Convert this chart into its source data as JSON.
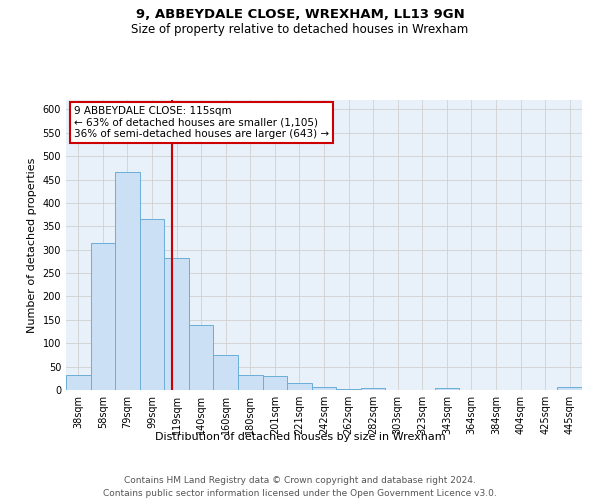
{
  "title": "9, ABBEYDALE CLOSE, WREXHAM, LL13 9GN",
  "subtitle": "Size of property relative to detached houses in Wrexham",
  "xlabel": "Distribution of detached houses by size in Wrexham",
  "ylabel": "Number of detached properties",
  "categories": [
    "38sqm",
    "58sqm",
    "79sqm",
    "99sqm",
    "119sqm",
    "140sqm",
    "160sqm",
    "180sqm",
    "201sqm",
    "221sqm",
    "242sqm",
    "262sqm",
    "282sqm",
    "303sqm",
    "323sqm",
    "343sqm",
    "364sqm",
    "384sqm",
    "404sqm",
    "425sqm",
    "445sqm"
  ],
  "values": [
    33,
    315,
    467,
    365,
    283,
    140,
    75,
    33,
    30,
    16,
    7,
    3,
    5,
    1,
    1,
    4,
    1,
    0,
    0,
    0,
    6
  ],
  "bar_color": "#cce0f5",
  "bar_edge_color": "#6baed6",
  "vline_x": 3.82,
  "vline_color": "#cc0000",
  "annotation_title": "9 ABBEYDALE CLOSE: 115sqm",
  "annotation_line1": "← 63% of detached houses are smaller (1,105)",
  "annotation_line2": "36% of semi-detached houses are larger (643) →",
  "annotation_box_color": "#ffffff",
  "annotation_box_edge_color": "#cc0000",
  "footer_line1": "Contains HM Land Registry data © Crown copyright and database right 2024.",
  "footer_line2": "Contains public sector information licensed under the Open Government Licence v3.0.",
  "ylim": [
    0,
    620
  ],
  "yticks": [
    0,
    50,
    100,
    150,
    200,
    250,
    300,
    350,
    400,
    450,
    500,
    550,
    600
  ],
  "background_color": "#ffffff",
  "grid_color": "#d0d0d0",
  "title_fontsize": 9.5,
  "subtitle_fontsize": 8.5,
  "axis_label_fontsize": 8,
  "tick_fontsize": 7,
  "annotation_fontsize": 7.5,
  "footer_fontsize": 6.5
}
